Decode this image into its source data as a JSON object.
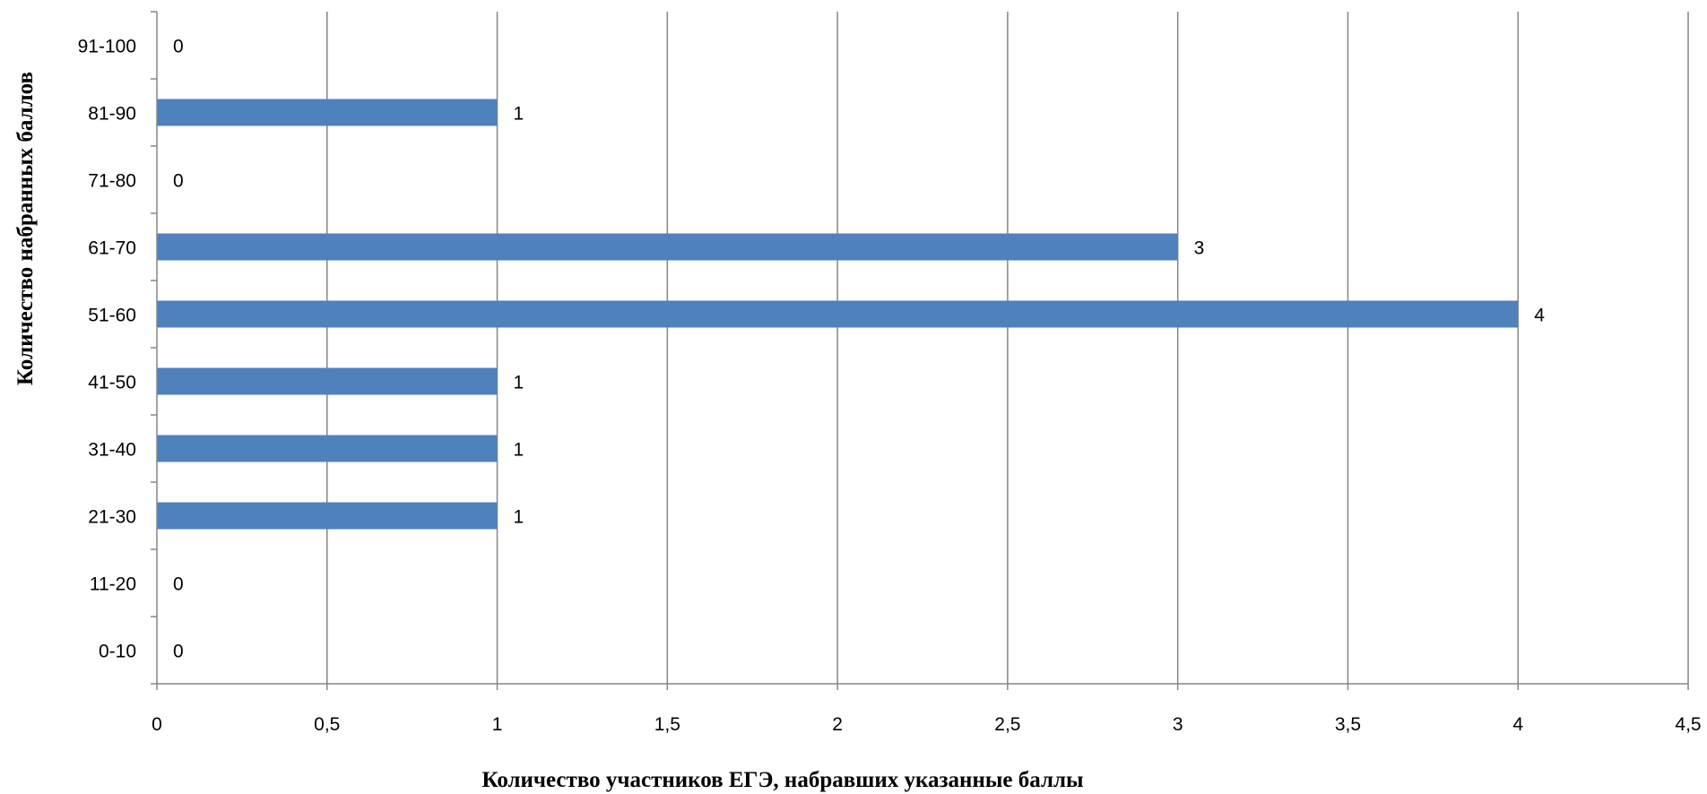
{
  "chart_data": {
    "type": "bar",
    "orientation": "horizontal",
    "categories": [
      "0-10",
      "11-20",
      "21-30",
      "31-40",
      "41-50",
      "51-60",
      "61-70",
      "71-80",
      "81-90",
      "91-100"
    ],
    "values": [
      0,
      0,
      1,
      1,
      1,
      4,
      3,
      0,
      1,
      0
    ],
    "data_labels": [
      "0",
      "0",
      "1",
      "1",
      "1",
      "4",
      "3",
      "0",
      "1",
      "0"
    ],
    "xlabel": "Количество участников ЕГЭ, набравших указанные баллы",
    "ylabel": "Количество набранных баллов",
    "xlim": [
      0,
      4.5
    ],
    "x_ticks": [
      0,
      0.5,
      1,
      1.5,
      2,
      2.5,
      3,
      3.5,
      4,
      4.5
    ],
    "x_tick_labels": [
      "0",
      "0,5",
      "1",
      "1,5",
      "2",
      "2,5",
      "3",
      "3,5",
      "4",
      "4,5"
    ],
    "grid": "vertical",
    "legend": "none",
    "colors": {
      "bar": "#4f81bd",
      "grid": "#868686",
      "axis": "#868686"
    }
  }
}
